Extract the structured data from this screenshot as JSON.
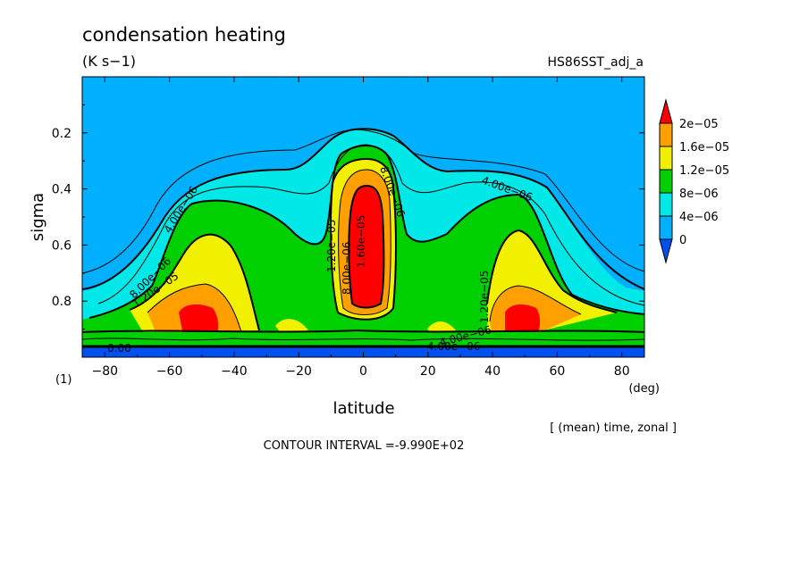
{
  "chart_data": {
    "type": "contour",
    "title": "condensation heating",
    "units": "(K s−1)",
    "experiment": "HS86SST_adj_a",
    "xlabel": "latitude",
    "xunits": "(deg)",
    "ylabel": "sigma",
    "yunits": "(1)",
    "footnote": "[ (mean) time, zonal ]",
    "contour_interval": "CONTOUR INTERVAL =-9.990E+02",
    "xlim": [
      -87,
      87
    ],
    "ylim": [
      1.0,
      0.0
    ],
    "x_ticks": [
      -80,
      -60,
      -40,
      -20,
      0,
      20,
      40,
      60,
      80
    ],
    "x_tick_labels": [
      "−80",
      "−60",
      "−40",
      "−20",
      "0",
      "20",
      "40",
      "60",
      "80"
    ],
    "y_ticks": [
      0.2,
      0.4,
      0.6,
      0.8
    ],
    "y_tick_labels": [
      "0.2",
      "0.4",
      "0.6",
      "0.8"
    ],
    "colorbar": {
      "levels": [
        0,
        4e-06,
        8e-06,
        1.2e-05,
        1.6e-05,
        2e-05
      ],
      "labels": [
        "0",
        "4e−06",
        "8e−06",
        "1.2e−05",
        "1.6e−05",
        "2e−05"
      ],
      "colors": [
        "#0050f0",
        "#00b0ff",
        "#00e8e8",
        "#00d000",
        "#f0f000",
        "#ffa000",
        "#ff0000"
      ]
    },
    "contour_labels": [
      "4.00e−06",
      "8.00e−06",
      "1.20e−05",
      "4.00e−06",
      "8.00e−06",
      "1.20e−05",
      "8.00e−06",
      "1.60e−05",
      "4.00e−06",
      "1.20e−05",
      "0.00",
      "4.00e−06"
    ],
    "field_features": [
      {
        "feature": "equatorial maximum",
        "lat": 0,
        "sigma": 0.65,
        "value": 2.2e-05
      },
      {
        "feature": "southern midlatitude maximum",
        "lat": -50,
        "sigma": 0.86,
        "value": 2.1e-05
      },
      {
        "feature": "northern midlatitude maximum",
        "lat": 50,
        "sigma": 0.86,
        "value": 2.1e-05
      },
      {
        "feature": "upper troposphere",
        "lat": 0,
        "sigma": 0.15,
        "value": 1e-06
      }
    ]
  }
}
